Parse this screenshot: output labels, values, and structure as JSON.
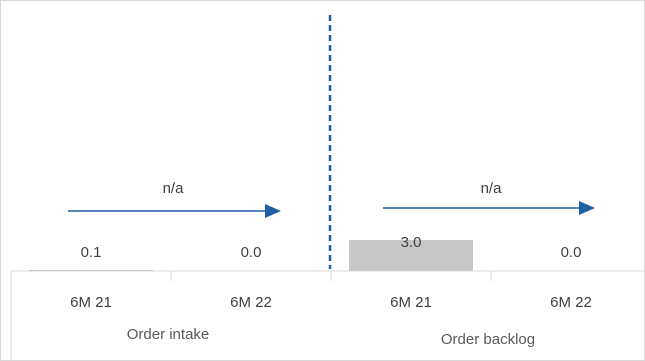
{
  "chart_data": {
    "type": "bar",
    "groups": [
      {
        "name": "Order intake",
        "categories": [
          "6M 21",
          "6M 22"
        ],
        "values": [
          0.1,
          0.0
        ],
        "value_labels": [
          "0.1",
          "0.0"
        ],
        "growth_label": "n/a"
      },
      {
        "name": "Order backlog",
        "categories": [
          "6M 21",
          "6M 22"
        ],
        "values": [
          3.0,
          0.0
        ],
        "value_labels": [
          "3.0",
          "0.0"
        ],
        "growth_label": "n/a"
      }
    ],
    "ylim": [
      0,
      3.6
    ],
    "grid": false,
    "legend": "none",
    "colors": {
      "bar": "#c8c8c8",
      "arrow": "#1f5fa8",
      "divider": "#1f5fa8",
      "axis": "#d9d9d9",
      "text": "#404040"
    }
  }
}
